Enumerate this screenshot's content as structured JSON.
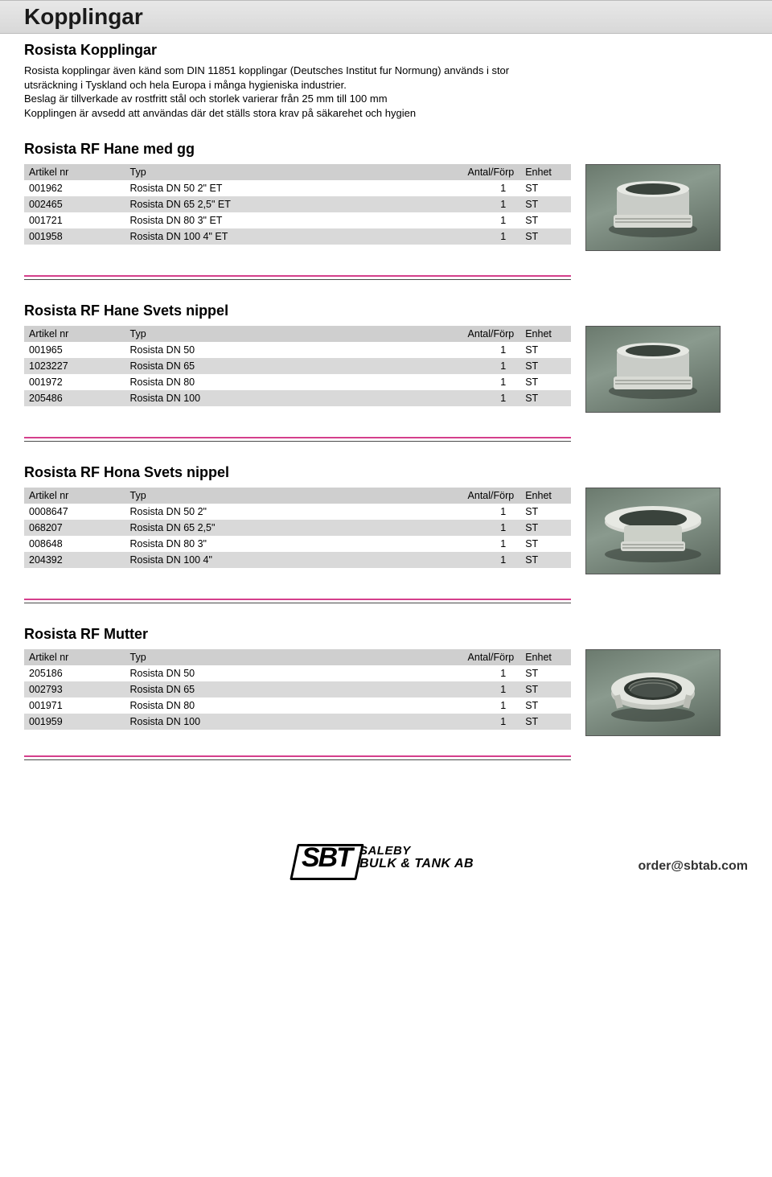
{
  "page_title": "Kopplingar",
  "intro_title": "Rosista Kopplingar",
  "intro_body_1": "Rosista kopplingar även känd som DIN 11851 kopplingar (Deutsches Institut fur Normung) används i stor utsräckning i Tyskland och hela Europa i många hygieniska industrier.",
  "intro_body_2": "Beslag är tillverkade av rostfritt stål och storlek varierar från 25 mm till 100 mm",
  "intro_body_3": "Kopplingen är avsedd att användas där det ställs stora krav på säkarehet och hygien",
  "columns": {
    "artikel": "Artikel nr",
    "typ": "Typ",
    "antal": "Antal/Förp",
    "enhet": "Enhet"
  },
  "sections": [
    {
      "id": "hane-gg",
      "title": "Rosista RF Hane med gg",
      "rows": [
        {
          "art": "001962",
          "typ": "Rosista DN 50 2\" ET",
          "antal": "1",
          "enhet": "ST",
          "alt": false
        },
        {
          "art": "002465",
          "typ": "Rosista DN 65 2,5\" ET",
          "antal": "1",
          "enhet": "ST",
          "alt": true
        },
        {
          "art": "001721",
          "typ": "Rosista DN 80 3\" ET",
          "antal": "1",
          "enhet": "ST",
          "alt": false
        },
        {
          "art": "001958",
          "typ": "Rosista DN 100 4\" ET",
          "antal": "1",
          "enhet": "ST",
          "alt": true
        }
      ]
    },
    {
      "id": "hane-svets",
      "title": "Rosista RF Hane Svets nippel",
      "rows": [
        {
          "art": "001965",
          "typ": "Rosista DN 50",
          "antal": "1",
          "enhet": "ST",
          "alt": false
        },
        {
          "art": "1023227",
          "typ": "Rosista DN 65",
          "antal": "1",
          "enhet": "ST",
          "alt": true
        },
        {
          "art": "001972",
          "typ": "Rosista DN 80",
          "antal": "1",
          "enhet": "ST",
          "alt": false
        },
        {
          "art": "205486",
          "typ": "Rosista DN 100",
          "antal": "1",
          "enhet": "ST",
          "alt": true
        }
      ]
    },
    {
      "id": "hona-svets",
      "title": "Rosista RF Hona Svets nippel",
      "rows": [
        {
          "art": "0008647",
          "typ": "Rosista DN 50 2\"",
          "antal": "1",
          "enhet": "ST",
          "alt": false
        },
        {
          "art": "068207",
          "typ": "Rosista DN 65 2,5\"",
          "antal": "1",
          "enhet": "ST",
          "alt": true
        },
        {
          "art": "008648",
          "typ": "Rosista DN 80 3\"",
          "antal": "1",
          "enhet": "ST",
          "alt": false
        },
        {
          "art": "204392",
          "typ": "Rosista DN 100  4\"",
          "antal": "1",
          "enhet": "ST",
          "alt": true
        }
      ]
    },
    {
      "id": "mutter",
      "title": "Rosista RF Mutter",
      "rows": [
        {
          "art": "205186",
          "typ": "Rosista DN 50",
          "antal": "1",
          "enhet": "ST",
          "alt": false
        },
        {
          "art": "002793",
          "typ": "Rosista DN 65",
          "antal": "1",
          "enhet": "ST",
          "alt": true
        },
        {
          "art": "001971",
          "typ": "Rosista DN 80",
          "antal": "1",
          "enhet": "ST",
          "alt": false
        },
        {
          "art": "001959",
          "typ": "Rosista DN 100",
          "antal": "1",
          "enhet": "ST",
          "alt": true
        }
      ]
    }
  ],
  "logo": {
    "badge": "SBT",
    "line1": "SALEBY",
    "line2": "BULK & TANK AB"
  },
  "footer_email": "order@sbtab.com",
  "colors": {
    "title_bar_bg_top": "#e8e8e8",
    "title_bar_bg_bottom": "#d8d8d8",
    "header_row_bg": "#cfcfcf",
    "alt_row_bg": "#d9d9d9",
    "rule_pink": "#d53f8c",
    "rule_dark": "#4a4a4a"
  }
}
